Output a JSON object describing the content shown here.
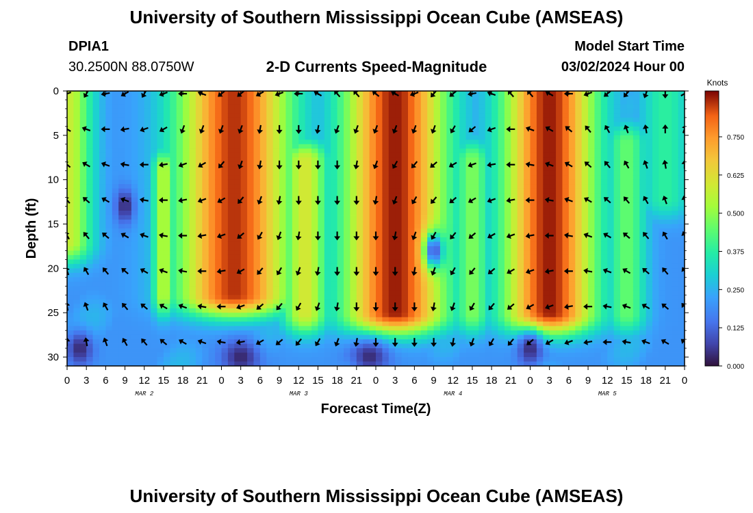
{
  "page": {
    "title_top": "University of Southern Mississippi Ocean Cube (AMSEAS)",
    "title_bottom": "University of Southern Mississippi Ocean Cube (AMSEAS)",
    "station_id": "DPIA1",
    "station_location": "30.2500N  88.0750W",
    "chart_subtitle": "2-D Currents Speed-Magnitude",
    "model_start_label": "Model Start Time",
    "model_start_value": "03/02/2024 Hour 00"
  },
  "chart_data": {
    "type": "heatmap",
    "title": "2-D Currents Speed-Magnitude",
    "xlabel": "Forecast Time(Z)",
    "ylabel": "Depth (ft)",
    "x_range_hours": [
      0,
      96
    ],
    "ylim": [
      31,
      0
    ],
    "x_ticks": [
      {
        "hour": 0,
        "label": "0"
      },
      {
        "hour": 3,
        "label": "3"
      },
      {
        "hour": 6,
        "label": "6"
      },
      {
        "hour": 9,
        "label": "9"
      },
      {
        "hour": 12,
        "label": "12"
      },
      {
        "hour": 15,
        "label": "15"
      },
      {
        "hour": 18,
        "label": "18"
      },
      {
        "hour": 21,
        "label": "21"
      },
      {
        "hour": 24,
        "label": "0"
      },
      {
        "hour": 27,
        "label": "3"
      },
      {
        "hour": 30,
        "label": "6"
      },
      {
        "hour": 33,
        "label": "9"
      },
      {
        "hour": 36,
        "label": "12"
      },
      {
        "hour": 39,
        "label": "15"
      },
      {
        "hour": 42,
        "label": "18"
      },
      {
        "hour": 45,
        "label": "21"
      },
      {
        "hour": 48,
        "label": "0"
      },
      {
        "hour": 51,
        "label": "3"
      },
      {
        "hour": 54,
        "label": "6"
      },
      {
        "hour": 57,
        "label": "9"
      },
      {
        "hour": 60,
        "label": "12"
      },
      {
        "hour": 63,
        "label": "15"
      },
      {
        "hour": 66,
        "label": "18"
      },
      {
        "hour": 69,
        "label": "21"
      },
      {
        "hour": 72,
        "label": "0"
      },
      {
        "hour": 75,
        "label": "3"
      },
      {
        "hour": 78,
        "label": "6"
      },
      {
        "hour": 81,
        "label": "9"
      },
      {
        "hour": 84,
        "label": "12"
      },
      {
        "hour": 87,
        "label": "15"
      },
      {
        "hour": 90,
        "label": "18"
      },
      {
        "hour": 93,
        "label": "21"
      },
      {
        "hour": 96,
        "label": "0"
      }
    ],
    "date_labels": [
      {
        "hour": 12,
        "label": "MAR 2"
      },
      {
        "hour": 36,
        "label": "MAR 3"
      },
      {
        "hour": 60,
        "label": "MAR 4"
      },
      {
        "hour": 84,
        "label": "MAR 5"
      }
    ],
    "y_ticks": [
      0,
      5,
      10,
      15,
      20,
      25,
      30
    ],
    "colorbar": {
      "label": "Knots",
      "min": 0.0,
      "max": 0.9,
      "ticks": [
        {
          "value": 0.0,
          "label": "0.000"
        },
        {
          "value": 0.125,
          "label": "0.125"
        },
        {
          "value": 0.25,
          "label": "0.250"
        },
        {
          "value": 0.375,
          "label": "0.375"
        },
        {
          "value": 0.5,
          "label": "0.500"
        },
        {
          "value": 0.625,
          "label": "0.625"
        },
        {
          "value": 0.75,
          "label": "0.750"
        }
      ]
    },
    "speed_features": [
      {
        "hour": 0,
        "depth": 3,
        "width_h": 5,
        "top": 0,
        "bottom": 17,
        "speed": 0.58
      },
      {
        "hour": 15,
        "depth": 18,
        "width_h": 2.2,
        "top": 9,
        "bottom": 23,
        "speed": 0.55
      },
      {
        "hour": 26,
        "depth": 5,
        "width_h": 11,
        "top": 0,
        "bottom": 23,
        "speed": 0.86
      },
      {
        "hour": 37,
        "depth": 16,
        "width_h": 4.5,
        "top": 8,
        "bottom": 25,
        "speed": 0.6
      },
      {
        "hour": 51,
        "depth": 5,
        "width_h": 10,
        "top": 0,
        "bottom": 25,
        "speed": 0.88
      },
      {
        "hour": 63,
        "depth": 16,
        "width_h": 3.5,
        "top": 8,
        "bottom": 25,
        "speed": 0.48
      },
      {
        "hour": 75,
        "depth": 5,
        "width_h": 9,
        "top": 0,
        "bottom": 25,
        "speed": 0.88
      },
      {
        "hour": 87,
        "depth": 15,
        "width_h": 4,
        "top": 6,
        "bottom": 25,
        "speed": 0.45
      },
      {
        "hour": 93,
        "depth": 4,
        "width_h": 5,
        "top": 0,
        "bottom": 12,
        "speed": 0.38
      }
    ],
    "calm_spots": [
      {
        "hour": 9,
        "depth": 13,
        "width_h": 1.5
      },
      {
        "hour": 2,
        "depth": 29,
        "width_h": 2
      },
      {
        "hour": 27,
        "depth": 30,
        "width_h": 3
      },
      {
        "hour": 47,
        "depth": 30,
        "width_h": 3
      },
      {
        "hour": 57,
        "depth": 18,
        "width_h": 1.5
      },
      {
        "hour": 72,
        "depth": 29,
        "width_h": 2
      }
    ],
    "vector_depths": [
      0,
      4,
      8,
      12,
      16,
      20,
      24,
      28
    ],
    "vector_hours_step": 3,
    "vector_directions_deg": [
      [
        250,
        210,
        260,
        240,
        210,
        250,
        270,
        290,
        230,
        230,
        240,
        250,
        270,
        300,
        320,
        320,
        310,
        300,
        250,
        220,
        230,
        260,
        290,
        320,
        320,
        300,
        270,
        250,
        230,
        220,
        200,
        180,
        60
      ],
      [
        300,
        290,
        270,
        260,
        250,
        240,
        200,
        200,
        200,
        200,
        190,
        180,
        180,
        190,
        200,
        200,
        200,
        200,
        200,
        200,
        210,
        230,
        250,
        270,
        290,
        300,
        310,
        320,
        330,
        340,
        350,
        0,
        20
      ],
      [
        310,
        300,
        290,
        280,
        270,
        260,
        250,
        240,
        220,
        200,
        190,
        180,
        180,
        180,
        180,
        190,
        200,
        210,
        220,
        230,
        240,
        250,
        260,
        270,
        280,
        290,
        300,
        310,
        320,
        330,
        340,
        350,
        0
      ],
      [
        320,
        310,
        300,
        290,
        280,
        270,
        260,
        250,
        240,
        220,
        200,
        190,
        180,
        180,
        180,
        180,
        190,
        200,
        210,
        220,
        230,
        240,
        250,
        260,
        270,
        280,
        290,
        300,
        310,
        320,
        330,
        340,
        350
      ],
      [
        330,
        320,
        310,
        300,
        290,
        280,
        270,
        260,
        250,
        230,
        210,
        200,
        190,
        180,
        180,
        180,
        180,
        190,
        200,
        210,
        220,
        230,
        240,
        250,
        260,
        270,
        280,
        290,
        300,
        310,
        320,
        330,
        340
      ],
      [
        340,
        330,
        320,
        310,
        300,
        290,
        280,
        270,
        260,
        240,
        220,
        210,
        200,
        190,
        180,
        180,
        180,
        180,
        190,
        200,
        210,
        220,
        230,
        240,
        250,
        260,
        270,
        280,
        290,
        300,
        310,
        320,
        330
      ],
      [
        350,
        340,
        330,
        320,
        310,
        300,
        290,
        280,
        270,
        250,
        230,
        220,
        210,
        200,
        190,
        180,
        180,
        180,
        180,
        190,
        200,
        210,
        220,
        230,
        240,
        250,
        260,
        270,
        280,
        290,
        300,
        310,
        320
      ],
      [
        0,
        350,
        340,
        330,
        320,
        310,
        300,
        290,
        280,
        260,
        240,
        230,
        220,
        210,
        200,
        190,
        180,
        180,
        180,
        180,
        190,
        200,
        210,
        220,
        230,
        240,
        250,
        260,
        270,
        280,
        290,
        300,
        310
      ]
    ]
  }
}
